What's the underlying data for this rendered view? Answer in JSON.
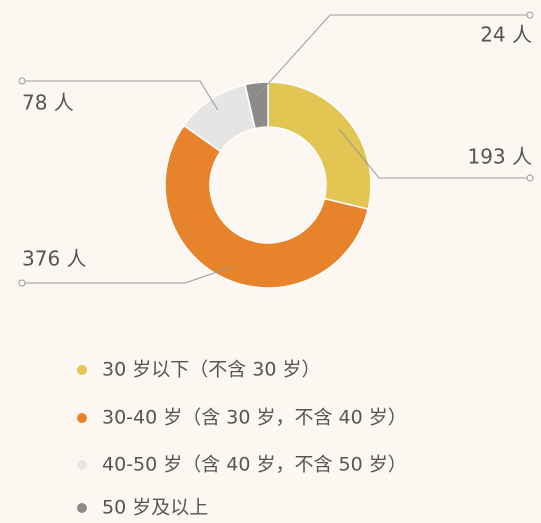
{
  "chart_data": {
    "type": "pie",
    "categories": [
      "30 岁以下（不含 30 岁）",
      "30-40 岁（含 30 岁，不含 40 岁）",
      "40-50 岁（含 40 岁，不含 50 岁）",
      "50 岁及以上"
    ],
    "values": [
      193,
      376,
      78,
      24
    ],
    "value_labels": [
      "193 人",
      "376 人",
      "78 人",
      "24 人"
    ],
    "colors": [
      "#e3c553",
      "#e6832b",
      "#e6e5e3",
      "#8c8b8a"
    ]
  }
}
